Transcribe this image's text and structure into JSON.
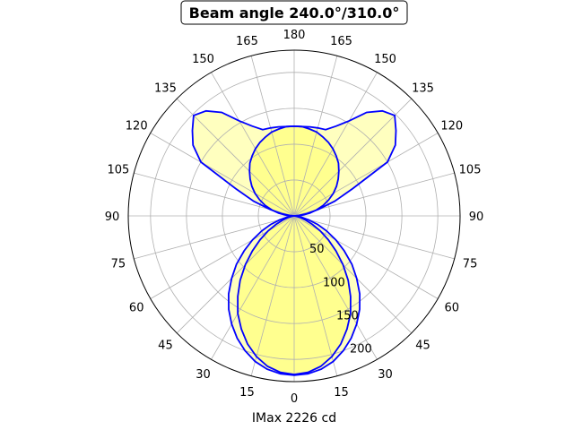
{
  "chart_data": {
    "type": "polar-line",
    "title": "Beam angle 240.0°/310.0°",
    "xlabel": "IMax 2226 cd",
    "angle_ticks": [
      0,
      15,
      30,
      45,
      60,
      75,
      90,
      105,
      120,
      135,
      150,
      165,
      180
    ],
    "radial_ticks": [
      50,
      100,
      150,
      200
    ],
    "rlim": [
      0,
      231
    ],
    "grid": true,
    "fill_color": "#ffff00",
    "line_color": "#0000ff",
    "series": [
      {
        "angles": [
          0,
          5,
          10,
          15,
          20,
          25,
          30,
          35,
          40,
          45,
          50,
          55,
          60,
          65,
          70,
          75,
          80,
          85,
          90,
          95,
          100,
          105,
          110,
          115,
          120,
          125,
          130,
          135,
          140,
          145,
          150,
          155,
          160,
          165,
          170,
          175,
          180
        ],
        "values": [
          222,
          221,
          217,
          210,
          200,
          188,
          174,
          159,
          142,
          123,
          105,
          85,
          67,
          50,
          35,
          21,
          10,
          3,
          0,
          6,
          18,
          35,
          60,
          90,
          150,
          172,
          185,
          198,
          191,
          176,
          153,
          138,
          128,
          127,
          126,
          125,
          125
        ]
      },
      {
        "angles": [
          0,
          5,
          10,
          15,
          20,
          25,
          30,
          35,
          40,
          45,
          50,
          55,
          60,
          65,
          70,
          75,
          80,
          85,
          90,
          95,
          100,
          105,
          110,
          115,
          120,
          125,
          130,
          135,
          140,
          145,
          150,
          155,
          160,
          165,
          170,
          175,
          180
        ],
        "values": [
          221,
          219,
          213,
          203,
          190,
          174,
          157,
          137,
          117,
          96,
          76,
          58,
          42,
          28,
          17,
          9,
          3,
          1,
          0,
          11,
          22,
          32,
          43,
          53,
          63,
          72,
          80,
          88,
          96,
          102,
          108,
          113,
          117,
          121,
          123,
          125,
          125
        ]
      }
    ]
  }
}
